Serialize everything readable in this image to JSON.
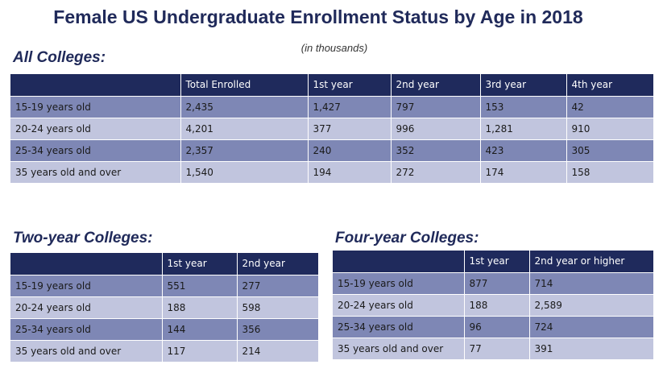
{
  "title": "Female US Undergraduate Enrollment Status by Age in 2018",
  "subtitle": "(in thousands)",
  "colors": {
    "header": "#1f2a5c",
    "row_dark": "#7e87b5",
    "row_light": "#c1c5de",
    "title": "#202a5a"
  },
  "all_colleges": {
    "heading": "All Colleges:",
    "columns": [
      "",
      "Total Enrolled",
      "1st year",
      "2nd year",
      "3rd year",
      "4th year"
    ],
    "rows": [
      [
        "15-19 years old",
        "2,435",
        "1,427",
        "797",
        "153",
        "42"
      ],
      [
        "20-24  years old",
        "4,201",
        "377",
        "996",
        "1,281",
        "910"
      ],
      [
        "25-34  years old",
        "2,357",
        "240",
        "352",
        "423",
        "305"
      ],
      [
        "35 years old and over",
        "1,540",
        "194",
        "272",
        "174",
        "158"
      ]
    ]
  },
  "two_year": {
    "heading": "Two-year Colleges:",
    "columns": [
      "",
      "1st year",
      "2nd year"
    ],
    "rows": [
      [
        "15-19 years old",
        "551",
        "277"
      ],
      [
        "20-24  years old",
        "188",
        "598"
      ],
      [
        "25-34  years old",
        "144",
        "356"
      ],
      [
        "35 years old and over",
        "117",
        "214"
      ]
    ]
  },
  "four_year": {
    "heading": "Four-year Colleges:",
    "columns": [
      "",
      "1st year",
      "2nd year or higher"
    ],
    "rows": [
      [
        "15-19 years old",
        "877",
        "714"
      ],
      [
        "20-24  years old",
        "188",
        "2,589"
      ],
      [
        "25-34  years old",
        "96",
        "724"
      ],
      [
        "35 years old and over",
        "77",
        "391"
      ]
    ]
  }
}
